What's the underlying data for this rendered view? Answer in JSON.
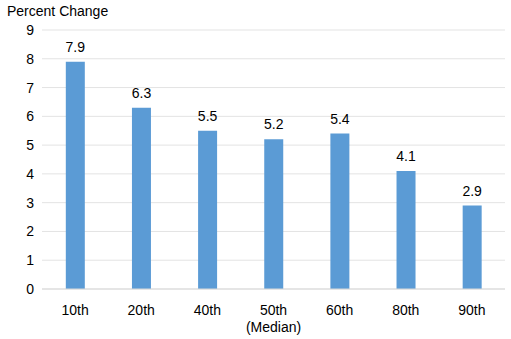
{
  "chart_data": {
    "type": "bar",
    "y_label": "Percent Change",
    "categories": [
      "10th",
      "20th",
      "40th",
      "50th\n(Median)",
      "60th",
      "80th",
      "90th"
    ],
    "values": [
      7.9,
      6.3,
      5.5,
      5.2,
      5.4,
      4.1,
      2.9
    ],
    "color": "#5b9bd5",
    "ylim": [
      0,
      9
    ],
    "yticks": [
      0,
      1,
      2,
      3,
      4,
      5,
      6,
      7,
      8,
      9
    ],
    "grid": true,
    "data_labels": true
  }
}
